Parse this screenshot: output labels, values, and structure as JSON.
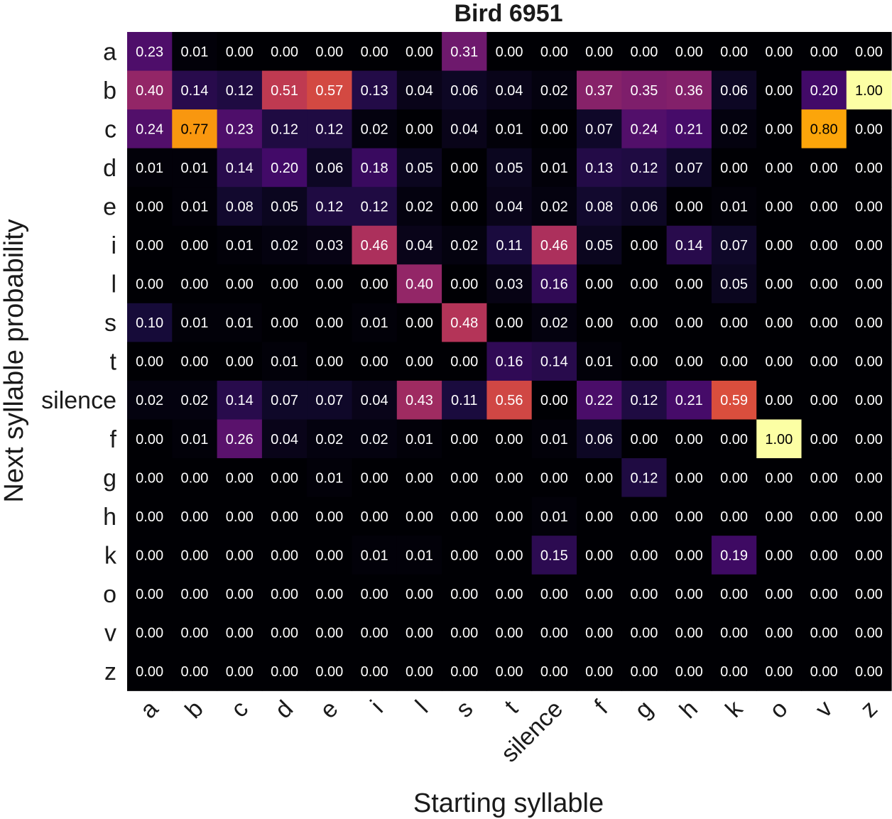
{
  "chart_data": {
    "type": "heatmap",
    "title": "Bird 6951",
    "xlabel": "Starting syllable",
    "ylabel": "Next syllable probability",
    "x_categories": [
      "a",
      "b",
      "c",
      "d",
      "e",
      "i",
      "l",
      "s",
      "t",
      "silence",
      "f",
      "g",
      "h",
      "k",
      "o",
      "v",
      "z"
    ],
    "y_categories": [
      "a",
      "b",
      "c",
      "d",
      "e",
      "i",
      "l",
      "s",
      "t",
      "silence",
      "f",
      "g",
      "h",
      "k",
      "o",
      "v",
      "z"
    ],
    "colormap": "inferno",
    "value_range": [
      0,
      1
    ],
    "values": [
      [
        0.23,
        0.01,
        0.0,
        0.0,
        0.0,
        0.0,
        0.0,
        0.31,
        0.0,
        0.0,
        0.0,
        0.0,
        0.0,
        0.0,
        0.0,
        0.0,
        0.0
      ],
      [
        0.4,
        0.14,
        0.12,
        0.51,
        0.57,
        0.13,
        0.04,
        0.06,
        0.04,
        0.02,
        0.37,
        0.35,
        0.36,
        0.06,
        0.0,
        0.2,
        1.0
      ],
      [
        0.24,
        0.77,
        0.23,
        0.12,
        0.12,
        0.02,
        0.0,
        0.04,
        0.01,
        0.0,
        0.07,
        0.24,
        0.21,
        0.02,
        0.0,
        0.8,
        0.0
      ],
      [
        0.01,
        0.01,
        0.14,
        0.2,
        0.06,
        0.18,
        0.05,
        0.0,
        0.05,
        0.01,
        0.13,
        0.12,
        0.07,
        0.0,
        0.0,
        0.0,
        0.0
      ],
      [
        0.0,
        0.01,
        0.08,
        0.05,
        0.12,
        0.12,
        0.02,
        0.0,
        0.04,
        0.02,
        0.08,
        0.06,
        0.0,
        0.01,
        0.0,
        0.0,
        0.0
      ],
      [
        0.0,
        0.0,
        0.01,
        0.02,
        0.03,
        0.46,
        0.04,
        0.02,
        0.11,
        0.46,
        0.05,
        0.0,
        0.14,
        0.07,
        0.0,
        0.0,
        0.0
      ],
      [
        0.0,
        0.0,
        0.0,
        0.0,
        0.0,
        0.0,
        0.4,
        0.0,
        0.03,
        0.16,
        0.0,
        0.0,
        0.0,
        0.05,
        0.0,
        0.0,
        0.0
      ],
      [
        0.1,
        0.01,
        0.01,
        0.0,
        0.0,
        0.01,
        0.0,
        0.48,
        0.0,
        0.02,
        0.0,
        0.0,
        0.0,
        0.0,
        0.0,
        0.0,
        0.0
      ],
      [
        0.0,
        0.0,
        0.0,
        0.01,
        0.0,
        0.0,
        0.0,
        0.0,
        0.16,
        0.14,
        0.01,
        0.0,
        0.0,
        0.0,
        0.0,
        0.0,
        0.0
      ],
      [
        0.02,
        0.02,
        0.14,
        0.07,
        0.07,
        0.04,
        0.43,
        0.11,
        0.56,
        0.0,
        0.22,
        0.12,
        0.21,
        0.59,
        0.0,
        0.0,
        0.0
      ],
      [
        0.0,
        0.01,
        0.26,
        0.04,
        0.02,
        0.02,
        0.01,
        0.0,
        0.0,
        0.01,
        0.06,
        0.0,
        0.0,
        0.0,
        1.0,
        0.0,
        0.0
      ],
      [
        0.0,
        0.0,
        0.0,
        0.0,
        0.01,
        0.0,
        0.0,
        0.0,
        0.0,
        0.0,
        0.0,
        0.12,
        0.0,
        0.0,
        0.0,
        0.0,
        0.0
      ],
      [
        0.0,
        0.0,
        0.0,
        0.0,
        0.0,
        0.0,
        0.0,
        0.0,
        0.0,
        0.01,
        0.0,
        0.0,
        0.0,
        0.0,
        0.0,
        0.0,
        0.0
      ],
      [
        0.0,
        0.0,
        0.0,
        0.0,
        0.0,
        0.01,
        0.01,
        0.0,
        0.0,
        0.15,
        0.0,
        0.0,
        0.0,
        0.19,
        0.0,
        0.0,
        0.0
      ],
      [
        0.0,
        0.0,
        0.0,
        0.0,
        0.0,
        0.0,
        0.0,
        0.0,
        0.0,
        0.0,
        0.0,
        0.0,
        0.0,
        0.0,
        0.0,
        0.0,
        0.0
      ],
      [
        0.0,
        0.0,
        0.0,
        0.0,
        0.0,
        0.0,
        0.0,
        0.0,
        0.0,
        0.0,
        0.0,
        0.0,
        0.0,
        0.0,
        0.0,
        0.0,
        0.0
      ],
      [
        0.0,
        0.0,
        0.0,
        0.0,
        0.0,
        0.0,
        0.0,
        0.0,
        0.0,
        0.0,
        0.0,
        0.0,
        0.0,
        0.0,
        0.0,
        0.0,
        0.0
      ]
    ]
  }
}
